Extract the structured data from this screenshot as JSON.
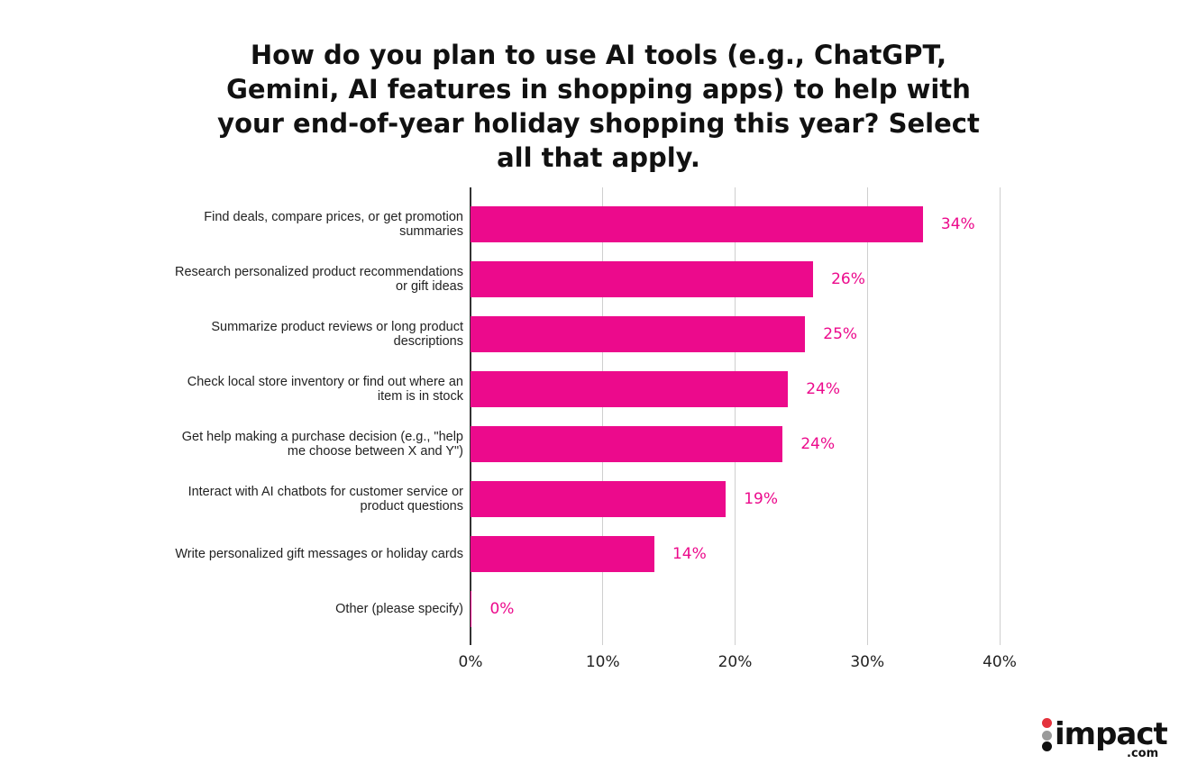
{
  "chart_data": {
    "type": "bar",
    "orientation": "horizontal",
    "title": "How do you plan to use AI tools (e.g., ChatGPT, Gemini, AI features in shopping apps) to help with your end-of-year holiday shopping this year? Select all that apply.",
    "categories": [
      "Find deals, compare prices, or get promotion summaries",
      "Research personalized product recommendations or gift ideas",
      "Summarize product reviews or long product descriptions",
      "Check local store inventory or find out where an item is in stock",
      "Get help making a purchase decision (e.g., \"help me choose between X and Y\")",
      "Interact with AI chatbots for customer service or product questions",
      "Write personalized gift messages or holiday cards",
      "Other (please specify)"
    ],
    "values": [
      34.2,
      25.9,
      25.3,
      24.0,
      23.6,
      19.3,
      13.9,
      0.1
    ],
    "value_labels": [
      "34%",
      "26%",
      "25%",
      "24%",
      "24%",
      "19%",
      "14%",
      "0%"
    ],
    "color": "#ec0a8c",
    "xlim": [
      0,
      40
    ],
    "xticks": [
      {
        "value": 0,
        "label": "0%"
      },
      {
        "value": 10,
        "label": "10%"
      },
      {
        "value": 20,
        "label": "20%"
      },
      {
        "value": 30,
        "label": "30%"
      },
      {
        "value": 40,
        "label": "40%"
      }
    ],
    "grid": true
  },
  "logo": {
    "name": "impact",
    "suffix": ".com"
  }
}
